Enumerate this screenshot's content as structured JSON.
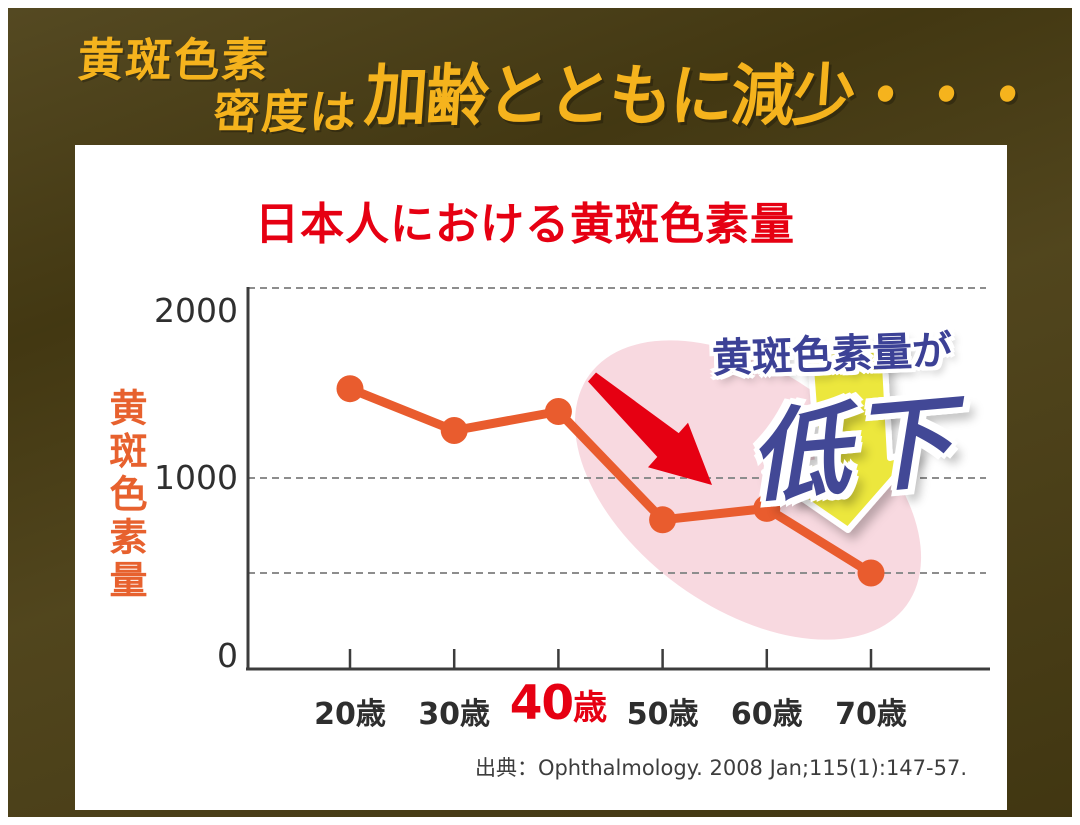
{
  "header": {
    "line1": "黄斑色素",
    "line2": "密度は",
    "main": "加齢とともに減少・・・"
  },
  "badge": {
    "label": "黄斑色素量が",
    "emphasis": "低下"
  },
  "chart_data": {
    "type": "line",
    "title": "日本人における黄斑色素量",
    "categories": [
      "20歳",
      "30歳",
      "40歳",
      "50歳",
      "60歳",
      "70歳"
    ],
    "values": [
      1470,
      1250,
      1350,
      780,
      840,
      500
    ],
    "ylabel": "黄斑色素量",
    "ylim": [
      0,
      2000
    ],
    "ytick_labels": [
      "2000",
      "1000",
      "0"
    ],
    "ytick_values": [
      2000,
      1000,
      0
    ],
    "gridline_values": [
      2000,
      1000,
      500
    ],
    "grid": "dashed",
    "highlight_category": "40歳",
    "series_color": "#e95c2e",
    "annotation": "黄斑色素量が低下",
    "source": "出典：Ophthalmology. 2008 Jan;115(1):147-57."
  },
  "colors": {
    "background_olive": "#4a3e14",
    "header_yellow": "#f5b31d",
    "title_red": "#e60012",
    "line_orange": "#e95c2e",
    "axis_dark": "#3c3c3c",
    "grid_gray": "#8d8d8d",
    "highlight_pink": "#f8d9e0",
    "badge_blue": "#3c4196",
    "arrow_yellow": "#ece73c",
    "arrow_red": "#e60012",
    "card_white": "#ffffff"
  }
}
